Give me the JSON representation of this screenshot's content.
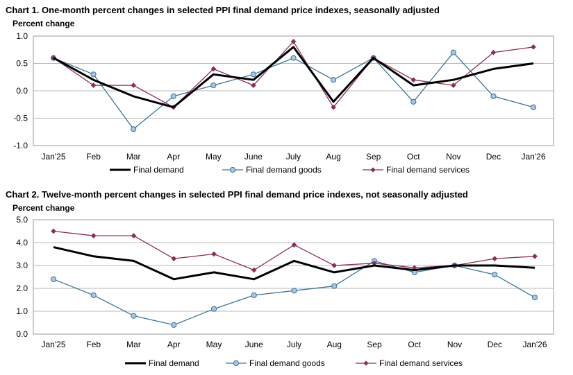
{
  "chart_data": [
    {
      "type": "line",
      "title": "Chart 1. One-month percent changes in selected PPI final demand price indexes, seasonally adjusted",
      "ylabel": "Percent change",
      "xlabel": "",
      "categories": [
        "Jan'25",
        "Feb",
        "Mar",
        "Apr",
        "May",
        "June",
        "July",
        "Aug",
        "Sep",
        "Oct",
        "Nov",
        "Dec",
        "Jan'26"
      ],
      "ylim": [
        -1.0,
        1.0
      ],
      "yticks": [
        "1.0",
        "0.5",
        "0.0",
        "-0.5",
        "-1.0"
      ],
      "grid": true,
      "legend_position": "bottom",
      "series": [
        {
          "name": "Final demand",
          "color": "#000000",
          "marker": "none",
          "values": [
            0.6,
            0.2,
            -0.1,
            -0.3,
            0.3,
            0.2,
            0.8,
            -0.2,
            0.6,
            0.1,
            0.2,
            0.4,
            0.5
          ]
        },
        {
          "name": "Final demand goods",
          "color": "#3b7395",
          "marker": "circle",
          "values": [
            0.6,
            0.3,
            -0.7,
            -0.1,
            0.1,
            0.3,
            0.6,
            0.2,
            0.6,
            -0.2,
            0.7,
            -0.1,
            -0.3
          ]
        },
        {
          "name": "Final demand services",
          "color": "#8b2e5c",
          "marker": "diamond",
          "values": [
            0.6,
            0.1,
            0.1,
            -0.3,
            0.4,
            0.1,
            0.9,
            -0.3,
            0.6,
            0.2,
            0.1,
            0.7,
            0.8
          ]
        }
      ]
    },
    {
      "type": "line",
      "title": "Chart 2. Twelve-month percent changes in selected PPI final demand price indexes, not seasonally adjusted",
      "ylabel": "Percent change",
      "xlabel": "",
      "categories": [
        "Jan'25",
        "Feb",
        "Mar",
        "Apr",
        "May",
        "June",
        "July",
        "Aug",
        "Sep",
        "Oct",
        "Nov",
        "Dec",
        "Jan'26"
      ],
      "ylim": [
        0.0,
        5.0
      ],
      "yticks": [
        "5.0",
        "4.0",
        "3.0",
        "2.0",
        "1.0",
        "0.0"
      ],
      "grid": true,
      "legend_position": "bottom",
      "series": [
        {
          "name": "Final demand",
          "color": "#000000",
          "marker": "none",
          "values": [
            3.8,
            3.4,
            3.2,
            2.4,
            2.7,
            2.4,
            3.2,
            2.7,
            3.0,
            2.8,
            3.0,
            3.0,
            2.9
          ]
        },
        {
          "name": "Final demand goods",
          "color": "#3b7395",
          "marker": "circle",
          "values": [
            2.4,
            1.7,
            0.8,
            0.4,
            1.1,
            1.7,
            1.9,
            2.1,
            3.2,
            2.7,
            3.0,
            2.6,
            1.6
          ]
        },
        {
          "name": "Final demand services",
          "color": "#8b2e5c",
          "marker": "diamond",
          "values": [
            4.5,
            4.3,
            4.3,
            3.3,
            3.5,
            2.8,
            3.9,
            3.0,
            3.1,
            2.9,
            3.0,
            3.3,
            3.4
          ]
        }
      ]
    }
  ]
}
